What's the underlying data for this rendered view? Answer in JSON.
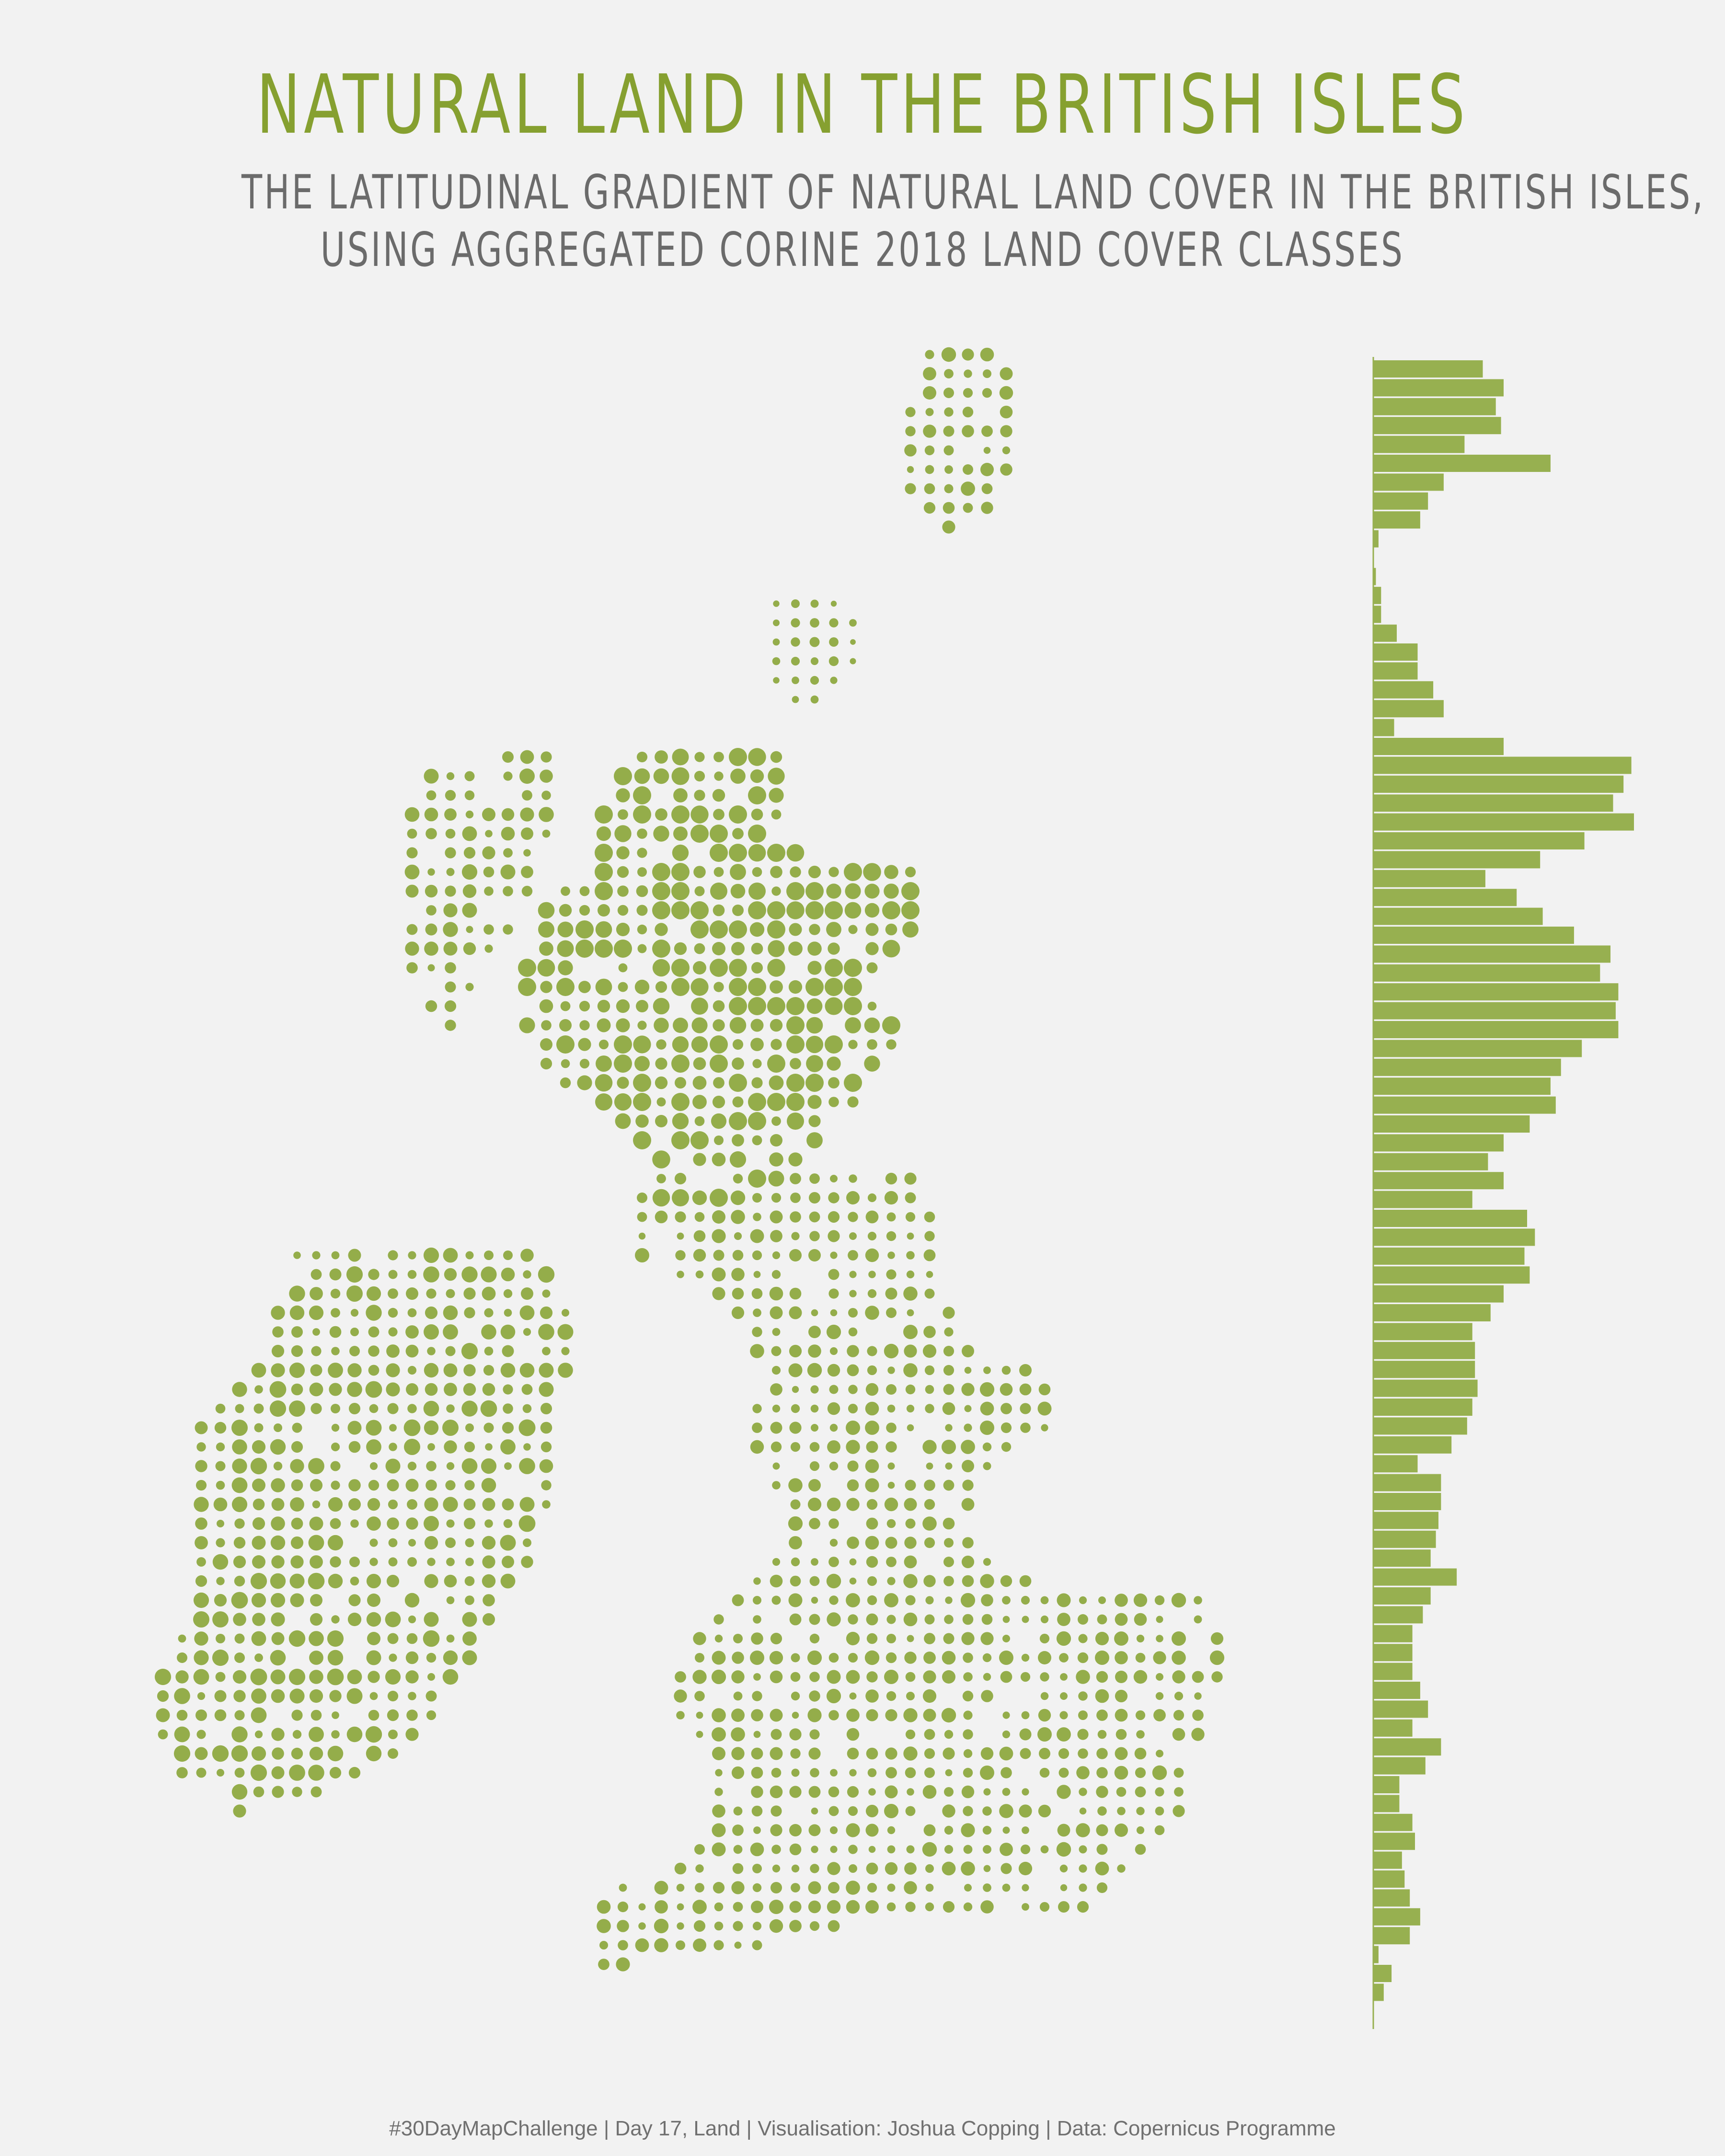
{
  "title": "NATURAL LAND IN THE BRITISH ISLES",
  "subtitle_line1": "THE LATITUDINAL GRADIENT OF NATURAL LAND COVER IN THE BRITISH ISLES,",
  "subtitle_line2": "USING AGGREGATED CORINE 2018 LAND COVER CLASSES",
  "caption": "#30DayMapChallenge | Day 17, Land | Visualisation: Joshua Copping | Data: Copernicus Programme",
  "colors": {
    "accent": "#86a030",
    "point": "#94ad4a",
    "bar": "#97b050",
    "text": "#6b6b6b",
    "background": "#f2f2f2"
  },
  "chart_data": [
    {
      "type": "scatter",
      "description_visible": "proportional-symbol dot map of natural land cover share per grid cell",
      "notes": "dot size encodes share of natural land in each grid cell"
    },
    {
      "type": "bar",
      "orientation": "horizontal",
      "categories_by_latitude_band_north_to_south": 89,
      "values": [
        0.42,
        0.5,
        0.47,
        0.49,
        0.35,
        0.68,
        0.27,
        0.21,
        0.18,
        0.02,
        0,
        0.01,
        0.03,
        0.03,
        0.09,
        0.17,
        0.17,
        0.23,
        0.27,
        0.08,
        0.5,
        0.99,
        0.96,
        0.92,
        1.0,
        0.81,
        0.64,
        0.43,
        0.55,
        0.65,
        0.77,
        0.91,
        0.87,
        0.94,
        0.93,
        0.94,
        0.8,
        0.72,
        0.68,
        0.7,
        0.6,
        0.5,
        0.44,
        0.5,
        0.38,
        0.59,
        0.62,
        0.58,
        0.6,
        0.5,
        0.45,
        0.38,
        0.39,
        0.39,
        0.4,
        0.38,
        0.36,
        0.3,
        0.17,
        0.26,
        0.26,
        0.25,
        0.24,
        0.22,
        0.32,
        0.22,
        0.19,
        0.15,
        0.15,
        0.15,
        0.18,
        0.21,
        0.15,
        0.26,
        0.2,
        0.1,
        0.1,
        0.15,
        0.16,
        0.11,
        0.12,
        0.14,
        0.18,
        0.14,
        0.02,
        0.07,
        0.04,
        0.0,
        0.0
      ]
    }
  ]
}
